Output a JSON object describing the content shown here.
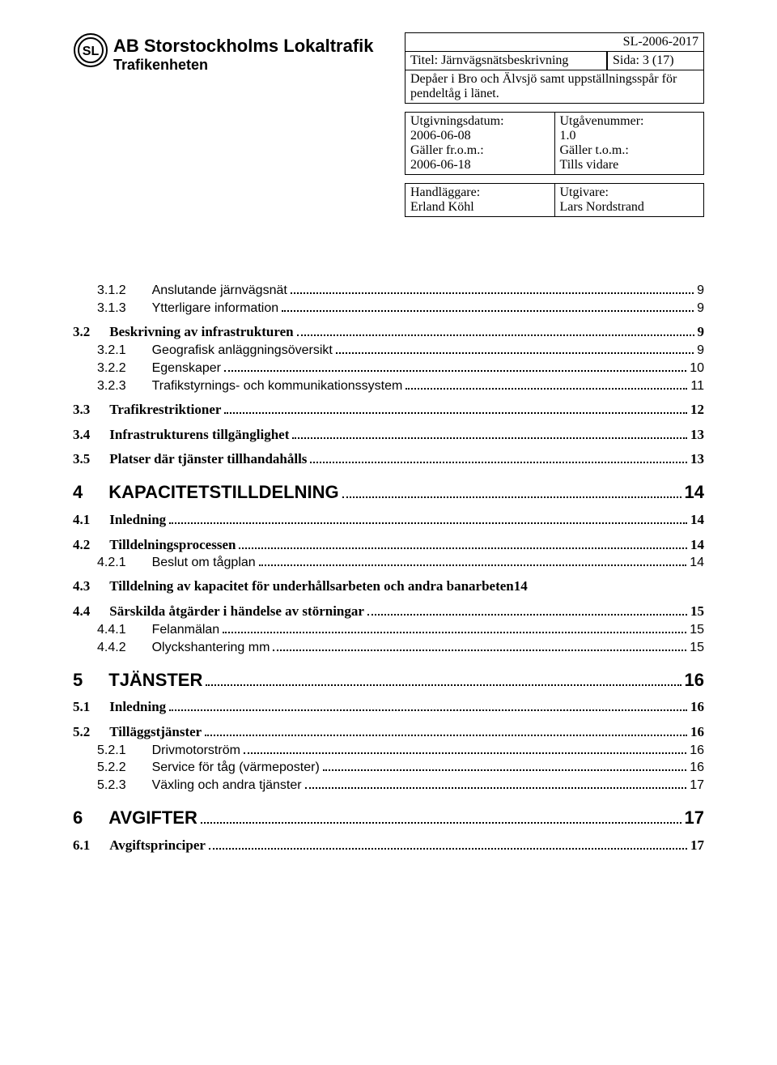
{
  "header": {
    "logo_text": "SL",
    "org_title": "AB Storstockholms Lokaltrafik",
    "org_sub": "Trafikenheten",
    "doc_id": "SL-2006-2017",
    "titel_label": "Titel: Järnvägsnätsbeskrivning",
    "sida_label": "Sida: 3 (17)",
    "desc": "Depåer i Bro och Älvsjö samt uppställningsspår för pendeltåg i länet.",
    "utgiv_date_label": "Utgivningsdatum:",
    "utgiv_date": "2006-06-08",
    "utgave_label": "Utgåvenummer:",
    "utgave_val": "1.0",
    "galler_from_label": "Gäller fr.o.m.:",
    "galler_from_val": "2006-06-18",
    "galler_tom_label": "Gäller t.o.m.:",
    "galler_tom_val": "Tills vidare",
    "handl_label": "Handläggare:",
    "handl_val": "Erland Köhl",
    "utgivare_label": "Utgivare:",
    "utgivare_val": "Lars Nordstrand"
  },
  "toc": [
    {
      "type": "h3",
      "num": "3.1.2",
      "title": "Anslutande järnvägsnät",
      "page": "9",
      "indent": 2
    },
    {
      "type": "h3",
      "num": "3.1.3",
      "title": "Ytterligare information",
      "page": "9",
      "indent": 2
    },
    {
      "type": "gap"
    },
    {
      "type": "h2",
      "num": "3.2",
      "title": "Beskrivning av infrastrukturen",
      "page": "9",
      "indent": 1
    },
    {
      "type": "h3",
      "num": "3.2.1",
      "title": "Geografisk anläggningsöversikt",
      "page": "9",
      "indent": 2
    },
    {
      "type": "h3",
      "num": "3.2.2",
      "title": "Egenskaper",
      "page": "10",
      "indent": 2
    },
    {
      "type": "h3",
      "num": "3.2.3",
      "title": "Trafikstyrnings- och kommunikationssystem",
      "page": "11",
      "indent": 2
    },
    {
      "type": "gap"
    },
    {
      "type": "h2",
      "num": "3.3",
      "title": "Trafikrestriktioner",
      "page": "12",
      "indent": 1
    },
    {
      "type": "gap"
    },
    {
      "type": "h2",
      "num": "3.4",
      "title": "Infrastrukturens tillgänglighet",
      "page": "13",
      "indent": 1
    },
    {
      "type": "gap"
    },
    {
      "type": "h2",
      "num": "3.5",
      "title": "Platser där tjänster tillhandahålls",
      "page": "13",
      "indent": 1
    },
    {
      "type": "gap-lg"
    },
    {
      "type": "h1",
      "num": "4",
      "title": "KAPACITETSTILLDELNING",
      "page": "14",
      "indent": 0
    },
    {
      "type": "gap"
    },
    {
      "type": "h2",
      "num": "4.1",
      "title": "Inledning",
      "page": "14",
      "indent": 1
    },
    {
      "type": "gap"
    },
    {
      "type": "h2",
      "num": "4.2",
      "title": "Tilldelningsprocessen",
      "page": "14",
      "indent": 1
    },
    {
      "type": "h3",
      "num": "4.2.1",
      "title": "Beslut om tågplan",
      "page": "14",
      "indent": 2
    },
    {
      "type": "gap"
    },
    {
      "type": "h2",
      "num": "4.3",
      "title": "Tilldelning av kapacitet för underhållsarbeten och andra banarbeten",
      "page": "14",
      "indent": 1,
      "nodots": true
    },
    {
      "type": "gap"
    },
    {
      "type": "h2",
      "num": "4.4",
      "title": "Särskilda åtgärder i händelse av störningar",
      "page": "15",
      "indent": 1
    },
    {
      "type": "h3",
      "num": "4.4.1",
      "title": "Felanmälan",
      "page": "15",
      "indent": 2
    },
    {
      "type": "h3",
      "num": "4.4.2",
      "title": "Olyckshantering mm",
      "page": "15",
      "indent": 2
    },
    {
      "type": "gap-lg"
    },
    {
      "type": "h1",
      "num": "5",
      "title": "TJÄNSTER",
      "page": "16",
      "indent": 0
    },
    {
      "type": "gap"
    },
    {
      "type": "h2",
      "num": "5.1",
      "title": "Inledning",
      "page": "16",
      "indent": 1
    },
    {
      "type": "gap"
    },
    {
      "type": "h2",
      "num": "5.2",
      "title": "Tilläggstjänster",
      "page": "16",
      "indent": 1
    },
    {
      "type": "h3",
      "num": "5.2.1",
      "title": "Drivmotorström",
      "page": "16",
      "indent": 2
    },
    {
      "type": "h3",
      "num": "5.2.2",
      "title": "Service för tåg (värmeposter)",
      "page": "16",
      "indent": 2
    },
    {
      "type": "h3",
      "num": "5.2.3",
      "title": "Växling och andra tjänster",
      "page": "17",
      "indent": 2
    },
    {
      "type": "gap-lg"
    },
    {
      "type": "h1",
      "num": "6",
      "title": "AVGIFTER",
      "page": "17",
      "indent": 0
    },
    {
      "type": "gap"
    },
    {
      "type": "h2",
      "num": "6.1",
      "title": "Avgiftsprinciper",
      "page": "17",
      "indent": 1
    }
  ]
}
